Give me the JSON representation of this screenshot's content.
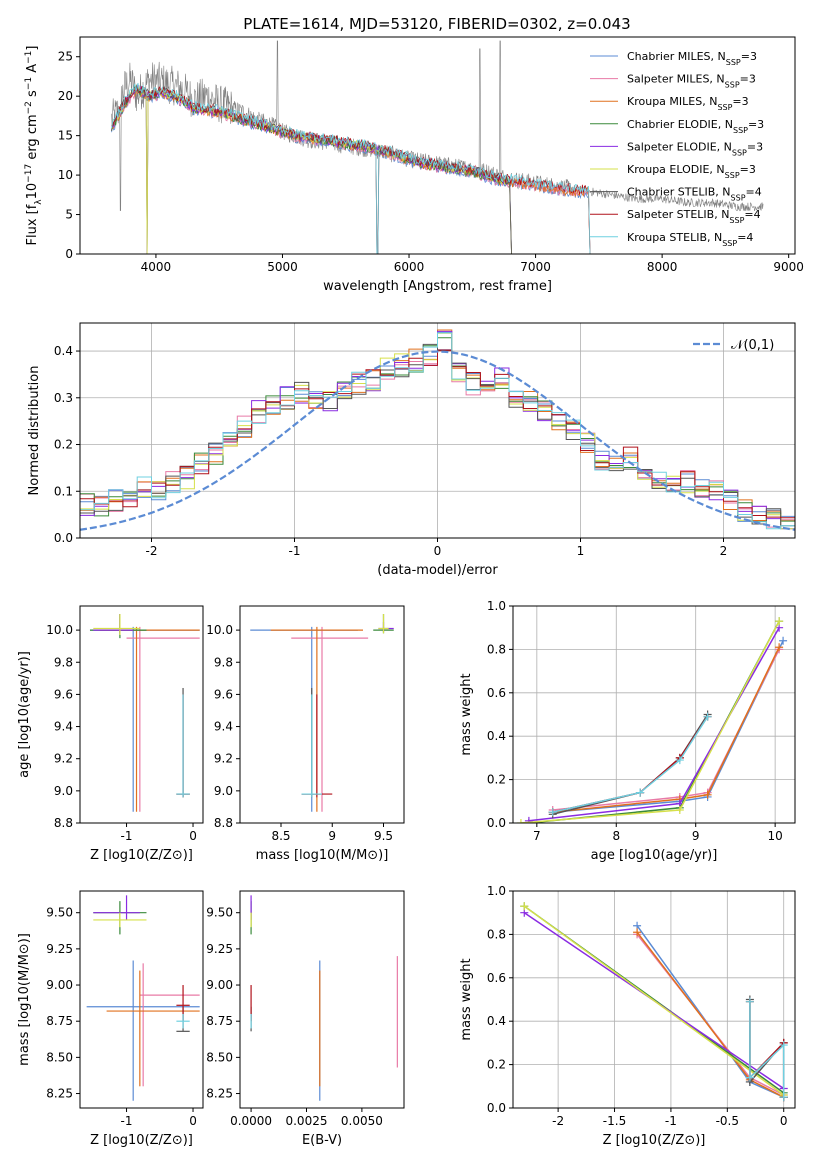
{
  "title": "PLATE=1614, MJD=53120, FIBERID=0302, z=0.043",
  "colors": {
    "Chabrier MILES": "#5b8bd4",
    "Salpeter MILES": "#e87aa6",
    "Kroupa MILES": "#e0701e",
    "Chabrier ELODIE": "#3a8a3a",
    "Salpeter ELODIE": "#8a2be2",
    "Kroupa ELODIE": "#d6e04a",
    "Chabrier STELIB": "#555555",
    "Salpeter STELIB": "#b0121b",
    "Kroupa STELIB": "#6fd0e0",
    "data": "#808080",
    "normal": "#5b8bd4"
  },
  "chart_data": [
    {
      "type": "line",
      "name": "spectrum",
      "xlabel": "wavelength [Angstrom, rest frame]",
      "ylabel": "Flux [f_λ 10^-17 erg cm^-2 s^-1 A^-1]",
      "xlim": [
        3400,
        9050
      ],
      "ylim": [
        0,
        27.5
      ],
      "xticks": [
        4000,
        5000,
        6000,
        7000,
        8000,
        9000
      ],
      "yticks": [
        0,
        5,
        10,
        15,
        20,
        25
      ],
      "grid": false,
      "legend_position": "top-right",
      "legend": [
        {
          "label": "Chabrier MILES",
          "nssp": "3"
        },
        {
          "label": "Salpeter MILES",
          "nssp": "3"
        },
        {
          "label": "Kroupa MILES",
          "nssp": "3"
        },
        {
          "label": "Chabrier ELODIE",
          "nssp": "3"
        },
        {
          "label": "Salpeter ELODIE",
          "nssp": "3"
        },
        {
          "label": "Kroupa ELODIE",
          "nssp": "3"
        },
        {
          "label": "Chabrier STELIB",
          "nssp": "4"
        },
        {
          "label": "Salpeter STELIB",
          "nssp": "4"
        },
        {
          "label": "Kroupa STELIB",
          "nssp": "4"
        }
      ],
      "data_series": {
        "name": "data",
        "x": [
          3650,
          3700,
          3750,
          3800,
          3850,
          3900,
          3950,
          4000,
          4100,
          4200,
          4300,
          4400,
          4500,
          4600,
          4700,
          4800,
          4900,
          5000,
          5200,
          5400,
          5600,
          5800,
          6000,
          6200,
          6400,
          6600,
          6800,
          7000,
          7200,
          7400,
          7600,
          7800,
          8000,
          8200,
          8400,
          8600,
          8800
        ],
        "y": [
          17,
          18,
          21,
          22,
          20,
          21,
          22,
          22,
          21.5,
          21,
          19.5,
          20,
          19,
          18.5,
          18,
          17,
          16.5,
          15.5,
          14.5,
          14,
          13.5,
          13,
          12,
          11.5,
          11,
          10.5,
          9.5,
          9,
          8.5,
          8,
          7.5,
          7,
          7,
          6.5,
          6.5,
          6,
          6
        ]
      },
      "model_x": [
        3650,
        3750,
        3850,
        3950,
        4050,
        4150,
        4300,
        4500,
        4700,
        4900,
        5100,
        5300,
        5500,
        5700,
        5900,
        6100,
        6300,
        6500,
        6700,
        6900,
        7100,
        7300,
        7400
      ],
      "model_y": [
        16,
        19,
        21,
        20,
        20.5,
        20,
        18.5,
        18,
        17,
        16,
        15,
        14.5,
        14,
        13.5,
        12.5,
        11.5,
        11,
        10.5,
        9.5,
        9,
        8.5,
        8,
        8
      ]
    },
    {
      "type": "line",
      "name": "residual-histogram",
      "xlabel": "(data-model)/error",
      "ylabel": "Normed distribution",
      "xlim": [
        -2.5,
        2.5
      ],
      "ylim": [
        0,
        0.46
      ],
      "xticks": [
        -2,
        -1,
        0,
        1,
        2
      ],
      "yticks": [
        0.0,
        0.1,
        0.2,
        0.3,
        0.4
      ],
      "grid": true,
      "legend_position": "top-right",
      "normal_label": "𝒩(0,1)",
      "bins_start": -2.5,
      "bin_width": 0.1,
      "base_hist": [
        0.07,
        0.07,
        0.08,
        0.09,
        0.11,
        0.1,
        0.12,
        0.13,
        0.16,
        0.18,
        0.22,
        0.24,
        0.27,
        0.28,
        0.3,
        0.31,
        0.3,
        0.29,
        0.31,
        0.33,
        0.34,
        0.36,
        0.37,
        0.38,
        0.39,
        0.42,
        0.35,
        0.33,
        0.32,
        0.34,
        0.3,
        0.29,
        0.27,
        0.25,
        0.23,
        0.2,
        0.17,
        0.16,
        0.17,
        0.14,
        0.13,
        0.12,
        0.12,
        0.11,
        0.1,
        0.08,
        0.06,
        0.05,
        0.04,
        0.03
      ]
    },
    {
      "type": "scatter",
      "name": "age-vs-Z",
      "xlabel": "Z [log10(Z/Z⊙)]",
      "ylabel": "age [log10(age/yr)]",
      "xlim": [
        -1.7,
        0.15
      ],
      "ylim": [
        8.8,
        10.15
      ],
      "xticks": [
        -1,
        0
      ],
      "yticks": [
        8.8,
        9.0,
        9.2,
        9.4,
        9.6,
        9.8,
        10.0
      ]
    },
    {
      "type": "scatter",
      "name": "age-vs-mass",
      "xlabel": "mass [log10(M/M⊙)]",
      "xlim": [
        8.1,
        9.7
      ],
      "ylim": [
        8.8,
        10.15
      ],
      "xticks": [
        8.5,
        9.0,
        9.5
      ],
      "yticks": [
        8.8,
        9.0,
        9.2,
        9.4,
        9.6,
        9.8,
        10.0
      ]
    },
    {
      "type": "line",
      "name": "mass-weight-vs-age",
      "xlabel": "age [log10(age/yr)]",
      "ylabel": "mass weight",
      "xlim": [
        6.7,
        10.25
      ],
      "ylim": [
        0,
        1.0
      ],
      "xticks": [
        7,
        8,
        9,
        10
      ],
      "yticks": [
        0.0,
        0.2,
        0.4,
        0.6,
        0.8,
        1.0
      ],
      "grid": true
    },
    {
      "type": "scatter",
      "name": "mass-vs-Z",
      "xlabel": "Z [log10(Z/Z⊙)]",
      "ylabel": "mass [log10(M/M⊙)]",
      "xlim": [
        -1.7,
        0.15
      ],
      "ylim": [
        8.15,
        9.65
      ],
      "xticks": [
        -1,
        0
      ],
      "yticks": [
        8.25,
        8.5,
        8.75,
        9.0,
        9.25,
        9.5
      ]
    },
    {
      "type": "scatter",
      "name": "mass-vs-EBV",
      "xlabel": "E(B-V)",
      "xlim": [
        -0.0005,
        0.0069
      ],
      "ylim": [
        8.15,
        9.65
      ],
      "xticks": [
        0.0,
        0.0025,
        0.005
      ],
      "xticklabels": [
        "0.0000",
        "0.0025",
        "0.0050"
      ],
      "yticks": [
        8.25,
        8.5,
        8.75,
        9.0,
        9.25,
        9.5
      ]
    },
    {
      "type": "line",
      "name": "mass-weight-vs-Z",
      "xlabel": "Z [log10(Z/Z⊙)]",
      "ylabel": "mass weight",
      "xlim": [
        -2.4,
        0.1
      ],
      "ylim": [
        0,
        1.0
      ],
      "xticks": [
        -2.0,
        -1.5,
        -1.0,
        -0.5,
        0.0
      ],
      "yticks": [
        0.0,
        0.2,
        0.4,
        0.6,
        0.8,
        1.0
      ],
      "grid": true
    }
  ]
}
